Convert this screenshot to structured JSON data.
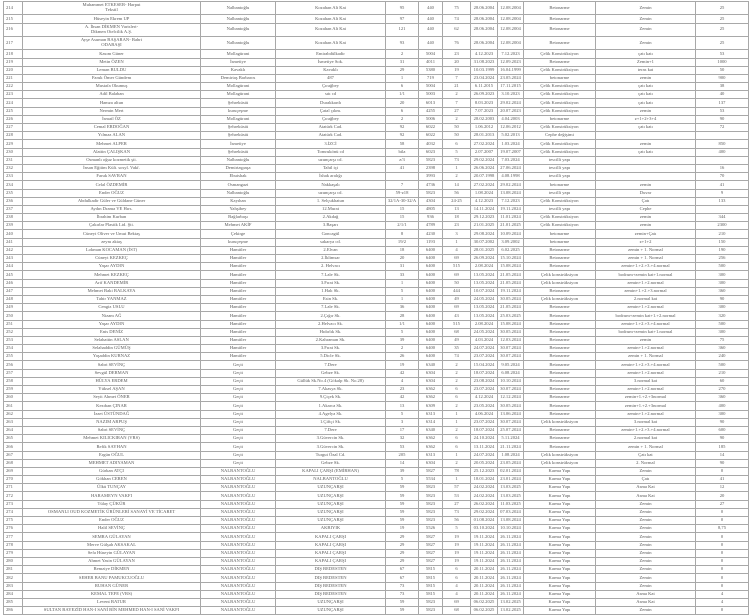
{
  "rows": [
    [
      "214",
      "Muhammet ETKESER- Harput Tekstil",
      "Nalbantoğlu",
      "Kozahan Alt Kat",
      "95",
      "440",
      "75",
      "28.06.2004",
      "12.08.2004",
      "Betonarme",
      "Zemin",
      "25"
    ],
    [
      "215",
      "Hüseyin Ekrem UP",
      "Nalbantoğlu",
      "Kozahan Alt Kat",
      "97",
      "440",
      "74",
      "28.06.2004",
      "12.08.2004",
      "Betonarme",
      "Zemin",
      "25"
    ],
    [
      "216",
      "A. İhsan DİKMEN Varisleri- Dikmen Otelcilik A.Ş.",
      "Nalbantoğlu",
      "Kozahan Alt Kat",
      "121",
      "440",
      "62",
      "28.06.2004",
      "12.08.2004",
      "Betonarme",
      "Zemin",
      "25"
    ],
    [
      "217",
      "Ayşe Asuman BAŞARAN- Bahri ODABAŞI",
      "Nalbantoğlu",
      "Kozahan Alt Kat",
      "93",
      "440",
      "76",
      "28.06.2004",
      "12.08.2004",
      "Betonarme",
      "Zemin",
      "25"
    ],
    [
      "218",
      "Kasım Güner",
      "Mollagürani",
      "Emirabdülkadir",
      "2",
      "5004",
      "23",
      "4.12.2023",
      "7.12.2023",
      "Çelik Konstrüksiyon",
      "çatı katı",
      "53"
    ],
    [
      "219",
      "Metin ÖZEN",
      "İsmetiye",
      "İsmetiye Sok.",
      "31",
      "4011",
      "20",
      "31.08.2023",
      "12.09.2023",
      "Betonarme",
      "Zemin+1",
      "1000"
    ],
    [
      "220",
      "Leman BULDU",
      "Kavaklı",
      "Kavaklı",
      "29",
      "5380",
      "19",
      "10.03.1999",
      "16.04.1999",
      "Çelik Konstrüksiyon",
      "teras kat",
      "50"
    ],
    [
      "221",
      "Faruk Ömer Gündem",
      "Demirtaş Barbaros",
      "487",
      "1",
      "719",
      "7",
      "23.04.2024",
      "23.05.2024",
      "betonarme",
      "zemin",
      "900"
    ],
    [
      "222",
      "Mustafa Okumuş",
      "Mollagürani",
      "Çırağbey",
      "6",
      "5004",
      "21",
      "6.11.2015",
      "17.11.2015",
      "Çelik Konstrüksiyon",
      "çatı katı",
      "38"
    ],
    [
      "223",
      "Adil Balaban",
      "Mollagürani",
      "sıtı cd",
      "1/1",
      "5003",
      "2",
      "26.09.2023",
      "3.10.2023",
      "Çelik Konstrüksiyon",
      "çatı katı",
      "40"
    ],
    [
      "224",
      "Hamza altun",
      "Şehreküstü",
      "Durakkardı",
      "20",
      "6013",
      "7",
      "8.03.2023",
      "29.02.2024",
      "Çelik Konstrüksiyon",
      "çatı katı",
      "137"
    ],
    [
      "225",
      "Nermin Mert",
      "kuruçeşme",
      "Çatal çıkm.",
      "6",
      "4255",
      "27",
      "7.07.2023",
      "20.07.2023",
      "Çelik Konstrüksiyon",
      "zemin",
      "53"
    ],
    [
      "226",
      "İsmail ÖZ",
      "Mollagürani",
      "Çırağbey",
      "2",
      "5006",
      "2",
      "28.02.2003",
      "4.04.2003",
      "betonarme",
      "z+1+2+3+4",
      "90"
    ],
    [
      "227",
      "Cemal ERDOĞAN",
      "Şehreküstü",
      "Atatürk Cad.",
      "92",
      "6022",
      "50",
      "1.06.2012",
      "12.06.2012",
      "Çelik Konstrüksiyon",
      "çatı katı",
      "72"
    ],
    [
      "228",
      "Yılmaz ALAN",
      "Şehreküstü",
      "Atatürk Cad.",
      "92",
      "6022",
      "50",
      "28.01.2013",
      "5.02.2013",
      "Cephe değişimi",
      "",
      ""
    ],
    [
      "229",
      "Mehmet ALPER",
      "İsmetiye",
      "3.İZCİ",
      "58",
      "4032",
      "6",
      "27.02.2024",
      "1.03.2024",
      "Çelik Konstrüksiyon",
      "zemin",
      "850"
    ],
    [
      "230",
      "Alattin ÇALIŞKAN",
      "Şehreküstü",
      "Tomrukönü cd",
      "bila",
      "6023",
      "5",
      "2.07.2007",
      "19.07.2007",
      "Çelik Konstrüksiyon",
      "çatı katı",
      "400"
    ],
    [
      "231",
      "Osmanlı oğuz kozmetik şti.",
      "Nalbantoğlu",
      "uzunçarşı cd.",
      "z/3",
      "5823",
      "73",
      "29.02.2024",
      "7.03.2024",
      "tescilli yapı",
      "",
      ""
    ],
    [
      "232",
      "İnsan Eğitim Kült. sosyl. Vakf.",
      "Demirtaşpaşa",
      "Tahtl içi",
      "41",
      "2398",
      "1",
      "26.06.2024",
      "27.06.2024",
      "tescilli yapı",
      "",
      "16"
    ],
    [
      "233",
      "Faruk SAVRAN",
      "Ebuishak",
      "İshak aralığı",
      "",
      "3993",
      "2",
      "20.07.1998",
      "4.08.1998",
      "tescilli yapı",
      "",
      "70"
    ],
    [
      "234",
      "Celal ÖZDEMİR",
      "Osmangazi",
      "Nakkaşalı",
      "7",
      "4736",
      "14",
      "27.02.2024",
      "29.02.2024",
      "betonarme",
      "zemin",
      "41"
    ],
    [
      "235",
      "Ender OĞUZ",
      "Nalbantoğlu",
      "uzunçarşı cd.",
      "59-z18",
      "5823",
      "56",
      "1.08.2024",
      "13.08.2024",
      "tescilli yapı",
      "Duvar",
      "9"
    ],
    [
      "236",
      "Abdulkadir Güler ve Güldane Güner",
      "Kayıhan",
      "1. Selçukhatun",
      "32/1A-30-32/A",
      "4304",
      "24-25",
      "4.12.2023",
      "7.12.2023",
      "Çelik Konstrüksiyon",
      "Çatı",
      "133"
    ],
    [
      "237",
      "Aydın Drama VE Hırs.",
      "Yahşibey",
      "12.Murat",
      "15",
      "4805",
      "13",
      "14.11.2024",
      "19.11.2024",
      "tescilli yapı",
      "Cephe",
      ""
    ],
    [
      "238",
      "İbrahim Kurban",
      "Bağlarbaşı",
      "2.Akdağ",
      "15",
      "936",
      "18",
      "29.12.2023",
      "11.01.2024",
      "Çelik Konstrüksiyon",
      "zemin",
      "344"
    ],
    [
      "239",
      "Çakırlar Plastik Ltd. Şti.",
      "Mehmet AKİF",
      "3.Başarı",
      "2/1/1",
      "4789",
      "23",
      "21.01.2025",
      "21.01.2025",
      "Çelik Konstrüksiyon",
      "zemin",
      "2300"
    ],
    [
      "240",
      "Cüneyt Oliver ve Umut Bektaş",
      "Çekirge",
      "Goncagül",
      "8",
      "4230",
      "3",
      "29.08.2024",
      "10.09.2024",
      "betonarme",
      "zemin+Çatı",
      "210"
    ],
    [
      "241",
      "zeynı aktaş",
      "kuruçeşme",
      "sakarya cd.",
      "19/2",
      "1193",
      "1",
      "30.07.2002",
      "3.09.2002",
      "betonarme",
      "z+1+2",
      "150"
    ],
    [
      "242",
      "Lokman KOCAMAN (İST)",
      "Hamitler",
      "2.Elvan",
      "18",
      "6400",
      "4",
      "28.01.2025",
      "6.02.2025",
      "Betonarme",
      "zemin + 1. Normal",
      "190"
    ],
    [
      "243",
      "Cüneyt KEZKEÇ",
      "Hamitler",
      "2.İklimsar",
      "20",
      "6400",
      "69",
      "26.09.2024",
      "15.10.2024",
      "Betonarme",
      "zemin + 1. Normal",
      "256"
    ],
    [
      "244",
      "Yaşar AYDIN",
      "Hamitler",
      "2. Helvacı",
      "31",
      "6400",
      "515",
      "2.08.2024",
      "15.08.2024",
      "Betonarme",
      "zemin+1.+2.+3.+4.normal",
      "500"
    ],
    [
      "245",
      "Mehmet KEZKEÇ",
      "Hamitler",
      "7.Lale Sk.",
      "33",
      "6400",
      "69",
      "13.05.2024",
      "21.05.2024",
      "Çelik konstrüksiyon",
      "bodrum+zemin kat+1.normal",
      "300"
    ],
    [
      "246",
      "Arif KANDEMİR",
      "Hamitler",
      "3.Fırat Sk.",
      "1",
      "6400",
      "50",
      "13.05.2024",
      "21.05.2024",
      "Çelik konstrüksiyon",
      "zemin+1.+2.normal",
      "300"
    ],
    [
      "247",
      "Mehmet Baki BALKAYA",
      "Hamitler",
      "1.Halı Sk.",
      "5",
      "6400",
      "444",
      "10.07.2024",
      "19.11.2024",
      "Betonarme",
      "zemin+1.+2.+3.normal",
      "360"
    ],
    [
      "248",
      "Tahir YANMAZ",
      "Hamitler",
      "Esin Sk.",
      "1",
      "6400",
      "49",
      "24.05.2024",
      "30.05.2024",
      "Çelik konstrüksiyon",
      "2.normal kat",
      "90"
    ],
    [
      "249",
      "Cengiz USLU",
      "Hamitler",
      "7.Lale Sk.",
      "36",
      "6400",
      "69",
      "13.05.2024",
      "21.05.2024",
      "Betonarme",
      "zemin+1.+2.normal",
      "300"
    ],
    [
      "250",
      "Nizam AĞ",
      "Hamitler",
      "2.Çığır Sk.",
      "28",
      "6400",
      "43",
      "13.05.2024",
      "25.03.2025",
      "Betonarme",
      "bodrum+zemin kat+1.+2.normal",
      "320"
    ],
    [
      "251",
      "Yaşar AYDIN",
      "Hamitler",
      "2.Helvacı Sk.",
      "1/1",
      "6400",
      "515",
      "2.08.2024",
      "15.08.2024",
      "Betonarme",
      "zemin+1.+2.+3.+4.normal",
      "500"
    ],
    [
      "252",
      "Enis DENİZ",
      "Hamitler",
      "Hıdırlık Sk.",
      "5",
      "6400",
      "68",
      "24.05.2024",
      "30.05.2024",
      "Betonarme",
      "bodrum+zemin kat+1.normal",
      "300"
    ],
    [
      "253",
      "Selahattin ASLAN",
      "Hamitler",
      "2.Kahraman Sk.",
      "39",
      "6400",
      "49",
      "4.03.2024",
      "12.03.2024",
      "Betonarme",
      "zemin",
      "75"
    ],
    [
      "254",
      "Selahaddin GÜMÜŞ",
      "Hamitler",
      "3.Fırat Sk.",
      "2",
      "6400",
      "35",
      "24.07.2024",
      "30.07.2024",
      "Betonarme",
      "zemin+1.+2.normal",
      "360"
    ],
    [
      "255",
      "Yaşaddin KURNAZ",
      "Hamitler",
      "5.Dicle Sk.",
      "26",
      "6400",
      "74",
      "23.07.2024",
      "30.07.2024",
      "Betonarme",
      "zemin + 1. Normal",
      "240"
    ],
    [
      "256",
      "Sabri SEVİNÇ",
      "Geçit",
      "7.Dere",
      "19",
      "6340",
      "2",
      "15.04.2024",
      "9.05.2024",
      "Betonarme",
      "zemin+1.+2.+3.+4.normal",
      "500"
    ],
    [
      "257",
      "Sevgül DERMAN",
      "Geçit",
      "Gebze Sk.",
      "42",
      "6304",
      "2",
      "18.07.2024",
      "6.08.2024",
      "Betonarme",
      "zemin+1.+2.normal",
      "210"
    ],
    [
      "258",
      "HÜLYA ERDEM",
      "Geçit",
      "Güllük Sk.No.4 (Gökalp Sk. No.28)",
      "4",
      "6304",
      "2",
      "23.08.2024",
      "10.10.2024",
      "Betonarme",
      "3.normal kat",
      "60"
    ],
    [
      "259",
      "Yüksel AŞAN",
      "Geçit",
      "7.Akasya Sk.",
      "23",
      "6362",
      "6",
      "23.07.2024",
      "30.07.2024",
      "Betonarme",
      "zemin+1.+2.normal",
      "270"
    ],
    [
      "260",
      "Seyit Ahmet ÖNER",
      "Geçit",
      "9.Çiçek Sk.",
      "42",
      "6362",
      "6",
      "4.12.2024",
      "12.12.2024",
      "Betonarme",
      "zemin+1.+2.+3normal",
      "360"
    ],
    [
      "261",
      "Kezıban ÇINAR",
      "Geçit",
      "1.Akarca Sk.",
      "13",
      "6309",
      "2",
      "23.05.2024",
      "30.05.2024",
      "Betonarme",
      "zemin+1.+2.+3normal",
      "400"
    ],
    [
      "262",
      "İzzet ÜSTÜNDAĞ",
      "Geçit",
      "4.Agelya Sk.",
      "5",
      "6313",
      "1",
      "4.06.2024",
      "13.06.2024",
      "Betonarme",
      "zemin+1.+2.normal",
      "300"
    ],
    [
      "263",
      "NAZIM ARPUŞ",
      "Geçit",
      "1.Çiftçi Sk.",
      "3",
      "6314",
      "1",
      "23.07.2024",
      "30.07.2024",
      "Çelik konstrüksiyon",
      "3.normal kat",
      "90"
    ],
    [
      "264",
      "Sabri SEVİNÇ",
      "Geçit",
      "7.Dere",
      "17",
      "6340",
      "2",
      "18.07.2024",
      "25.07.2024",
      "Betonarme",
      "zemin+1.+2.+3.+4.normal",
      "600"
    ],
    [
      "265",
      "Mehmet KILICKIRAN (VRS)",
      "Geçit",
      "3.Güvercin Sk.",
      "32",
      "6362",
      "6",
      "24.10.2024",
      "5.11.2024",
      "Betonarme",
      "2.normal kat",
      "90"
    ],
    [
      "266",
      "Refik SAYHAN",
      "Geçit",
      "3.Güvercin Sk.",
      "53",
      "6362",
      "6",
      "13.11.2024",
      "21.11.2024",
      "Betonarme",
      "zemin + 1. Normal",
      "185"
    ],
    [
      "267",
      "Ergün OĞUL",
      "Geçit",
      "Turgut Özal Cd.",
      "205",
      "6313",
      "1",
      "24.07.2024",
      "1.08.2024",
      "Çelik konstrüksiyon",
      "Çatı kat",
      "14"
    ],
    [
      "268",
      "MEHMET ADIYAMAN",
      "Geçit",
      "Gebze Sk.",
      "14",
      "6304",
      "2",
      "20.05.2024",
      "23.05.2024",
      "Çelik konstrüksiyon",
      "2. Normal",
      "90"
    ],
    [
      "269",
      "Gürkan ATÇI",
      "NALBANTOĞLU",
      "KAPALI ÇARŞI (EMİRHAN)",
      "39",
      "5827",
      "78",
      "25.12.2023",
      "02.01.2024",
      "Karma Yapı",
      "Zemin",
      "0"
    ],
    [
      "270",
      "Gökhan CEREN",
      "NALBANTOĞLU",
      "NALBANTOĞLU",
      "5",
      "5534",
      "1",
      "18.01.2024",
      "23.01.2024",
      "Karma Yapı",
      "Çatı",
      "41"
    ],
    [
      "271",
      "Ülkü TUNÇAY",
      "NALBANTOĞLU",
      "UZUNÇARŞI",
      "59",
      "5823",
      "57",
      "24.02.2024",
      "13.03.2025",
      "Karma Yapı",
      "Asma Kat",
      "12"
    ],
    [
      "272",
      "HARAMEYN VAKFI",
      "NALBANTOĞLU",
      "UZUNÇARŞI",
      "59",
      "5823",
      "53",
      "24.02.2024",
      "13.03.2025",
      "Karma Yapı",
      "Asma Kat",
      "20"
    ],
    [
      "273",
      "Tülay ÇÜKÜR",
      "NALBANTOĞLU",
      "UZUNÇARŞI",
      "59",
      "5823",
      "27",
      "26.02.2024",
      "11.03.2025",
      "Karma Yapı",
      "Zemin",
      "27"
    ],
    [
      "274",
      "OSMANLI OUD KOZMETİK ÜRÜNLERİ SANAYİ VE TİCARET",
      "NALBANTOĞLU",
      "UZUNÇARŞI",
      "59",
      "5823",
      "73",
      "29.02.2024",
      "07.03.2024",
      "Karma Yapı",
      "Zemin",
      "0"
    ],
    [
      "275",
      "Ender OĞUZ",
      "NALBANTOĞLU",
      "UZUNÇARŞI",
      "59",
      "5823",
      "56",
      "01.08.2024",
      "13.08.2024",
      "Karma Yapı",
      "Zemin",
      "0"
    ],
    [
      "276",
      "Halil SEVİNÇ",
      "NALBANTOĞLU",
      "AKBIYIK",
      "19",
      "5526",
      "5",
      "03.10.2024",
      "10.10.2024",
      "Karma Yapı",
      "Zemin",
      "8,75"
    ],
    [
      "277",
      "SEMRA GÜLAYAN",
      "NALBANTOĞLU",
      "KAPALI ÇARŞI",
      "29",
      "5827",
      "19",
      "19.11.2024",
      "26.11.2024",
      "Karma Yapı",
      "Zemin",
      "0"
    ],
    [
      "278",
      "Merve Gülşah AKSAKAL",
      "NALBANTOĞLU",
      "KAPALI ÇARŞI",
      "29",
      "5827",
      "19",
      "19.11.2024",
      "26.11.2024",
      "Karma Yapı",
      "Zemin",
      "0"
    ],
    [
      "279",
      "Sefa Hüseyin GÜLAYAN",
      "NALBANTOĞLU",
      "KAPALI ÇARŞI",
      "29",
      "5827",
      "19",
      "19.11.2024",
      "26.11.2024",
      "Karma Yapı",
      "Zemin",
      "0"
    ],
    [
      "280",
      "Ahmet Yasin GÜLAYAN",
      "NALBANTOĞLU",
      "KAPALI ÇARŞI",
      "29",
      "5827",
      "19",
      "19.11.2024",
      "26.11.2024",
      "Karma Yapı",
      "Zemin",
      "0"
    ],
    [
      "281",
      "Remziye DİKMEN",
      "NALBANTOĞLU",
      "DIŞ BEDESTEN",
      "67",
      "5815",
      "6",
      "20.11.2024",
      "26.11.2024",
      "Karma Yapı",
      "Zemin",
      "0"
    ],
    [
      "282",
      "SEHER BANU PAMUKCUOĞLU",
      "NALBANTOĞLU",
      "DIŞ BEDESTEN",
      "67",
      "5815",
      "6",
      "20.11.2024",
      "26.11.2024",
      "Karma Yapı",
      "Zemin",
      "0"
    ],
    [
      "283",
      "RUHAN GÜNER",
      "NALBANTOĞLU",
      "DIŞ BEDESTEN",
      "73",
      "5815",
      "4",
      "20.11.2024",
      "26.11.2024",
      "Karma Yapı",
      "Zemin",
      "0"
    ],
    [
      "284",
      "KEMAL TEFE (VRS)",
      "NALBANTOĞLU",
      "DIŞ BEDESTEN",
      "73",
      "5815",
      "4",
      "20.11.2024",
      "26.11.2024",
      "Karma Yapı",
      "Asma Kat",
      "4"
    ],
    [
      "285",
      "Levent BATUR",
      "NALBANTOĞLU",
      "UZUNÇARŞI",
      "59",
      "5823",
      "69",
      "06.02.2025",
      "13.02.2025",
      "Karma Yapı",
      "Asma Kat",
      "4"
    ],
    [
      "286",
      "SULTAN BAYEZİD HAN-I SANİ BİN MEHMED HAN-I SANİ VAKFI",
      "NALBANTOĞLU",
      "UZUNÇARŞI",
      "59",
      "5823",
      "68",
      "06.02.2025",
      "13.02.2025",
      "Karma Yapı",
      "Zemin",
      "0"
    ]
  ]
}
